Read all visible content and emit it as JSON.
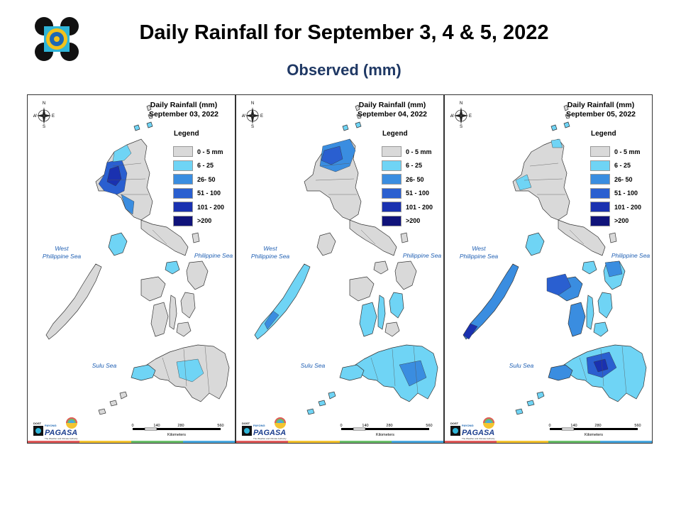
{
  "header": {
    "title": "Daily Rainfall for September 3, 4 & 5, 2022",
    "subtitle": "Observed (mm)"
  },
  "legend": {
    "title": "Legend",
    "classes": [
      {
        "label": "0 - 5 mm",
        "color": "#d9d9d9"
      },
      {
        "label": "6 - 25",
        "color": "#6fd4f5"
      },
      {
        "label": "26- 50",
        "color": "#3a8de0"
      },
      {
        "label": "51 - 100",
        "color": "#2a5fd0"
      },
      {
        "label": "101 - 200",
        "color": "#1a31b0"
      },
      {
        "label": ">200",
        "color": "#10137a"
      }
    ]
  },
  "panels": [
    {
      "title_line1": "Daily Rainfall (mm)",
      "title_line2": "September 03, 2022",
      "emphasis": "west-luzon"
    },
    {
      "title_line1": "Daily Rainfall (mm)",
      "title_line2": "September 04, 2022",
      "emphasis": "north-luzon"
    },
    {
      "title_line1": "Daily Rainfall (mm)",
      "title_line2": "September 05, 2022",
      "emphasis": "visayas-mindanao"
    }
  ],
  "labels": {
    "west_sea_line1": "West",
    "west_sea_line2": "Philippine Sea",
    "east_sea": "Philippine Sea",
    "sulu_sea": "Sulu Sea",
    "compass_n": "N",
    "compass_s": "S",
    "compass_e": "E",
    "compass_w": "W",
    "scale_ticks": [
      "0",
      "140",
      "280",
      "560"
    ],
    "scale_unit": "Kilometers",
    "logo_text": "PAGASA",
    "logo_small": "DOST",
    "logo_payong": "PAYONG",
    "logo_tagline": "The Weather and Climate Authority"
  },
  "brand_colors": {
    "bar": [
      "#e05a5a",
      "#f4c430",
      "#6abf69",
      "#4aa8e0"
    ]
  }
}
